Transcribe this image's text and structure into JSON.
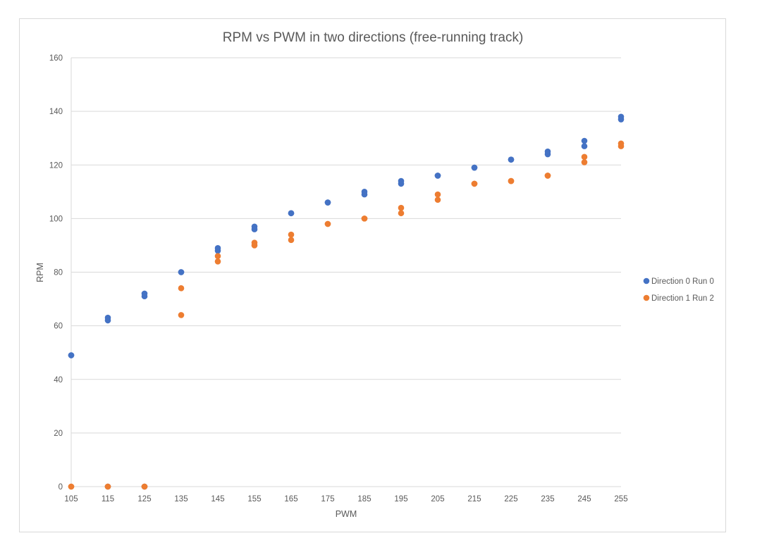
{
  "chart_data": {
    "type": "scatter",
    "title": "RPM vs PWM in two directions (free-running track)",
    "xlabel": "PWM",
    "ylabel": "RPM",
    "xlim": [
      105,
      255
    ],
    "ylim": [
      0,
      160
    ],
    "xticks": [
      105,
      115,
      125,
      135,
      145,
      155,
      165,
      175,
      185,
      195,
      205,
      215,
      225,
      235,
      245,
      255
    ],
    "yticks": [
      0,
      20,
      40,
      60,
      80,
      100,
      120,
      140,
      160
    ],
    "grid": true,
    "legend_position": "right",
    "series": [
      {
        "name": "Direction 0 Run 0",
        "color": "#4472c4",
        "points": [
          [
            105,
            49
          ],
          [
            105,
            49
          ],
          [
            115,
            62
          ],
          [
            115,
            63
          ],
          [
            115,
            0
          ],
          [
            125,
            71
          ],
          [
            125,
            72
          ],
          [
            125,
            0
          ],
          [
            135,
            80
          ],
          [
            135,
            80
          ],
          [
            145,
            88
          ],
          [
            145,
            89
          ],
          [
            155,
            96
          ],
          [
            155,
            97
          ],
          [
            165,
            102
          ],
          [
            165,
            102
          ],
          [
            175,
            106
          ],
          [
            175,
            106
          ],
          [
            185,
            109
          ],
          [
            185,
            110
          ],
          [
            195,
            113
          ],
          [
            195,
            114
          ],
          [
            205,
            116
          ],
          [
            205,
            116
          ],
          [
            215,
            119
          ],
          [
            215,
            119
          ],
          [
            225,
            122
          ],
          [
            225,
            122
          ],
          [
            235,
            124
          ],
          [
            235,
            125
          ],
          [
            245,
            127
          ],
          [
            245,
            129
          ],
          [
            255,
            137
          ],
          [
            255,
            138
          ]
        ]
      },
      {
        "name": "Direction 1 Run 2",
        "color": "#ed7d31",
        "points": [
          [
            105,
            0
          ],
          [
            105,
            0
          ],
          [
            115,
            0
          ],
          [
            115,
            0
          ],
          [
            125,
            0
          ],
          [
            125,
            0
          ],
          [
            135,
            64
          ],
          [
            135,
            74
          ],
          [
            145,
            84
          ],
          [
            145,
            86
          ],
          [
            155,
            90
          ],
          [
            155,
            91
          ],
          [
            165,
            92
          ],
          [
            165,
            94
          ],
          [
            175,
            98
          ],
          [
            175,
            98
          ],
          [
            185,
            100
          ],
          [
            185,
            100
          ],
          [
            195,
            102
          ],
          [
            195,
            104
          ],
          [
            205,
            107
          ],
          [
            205,
            109
          ],
          [
            215,
            113
          ],
          [
            215,
            113
          ],
          [
            225,
            114
          ],
          [
            225,
            114
          ],
          [
            235,
            116
          ],
          [
            235,
            116
          ],
          [
            245,
            121
          ],
          [
            245,
            123
          ],
          [
            255,
            127
          ],
          [
            255,
            128
          ]
        ]
      }
    ]
  }
}
